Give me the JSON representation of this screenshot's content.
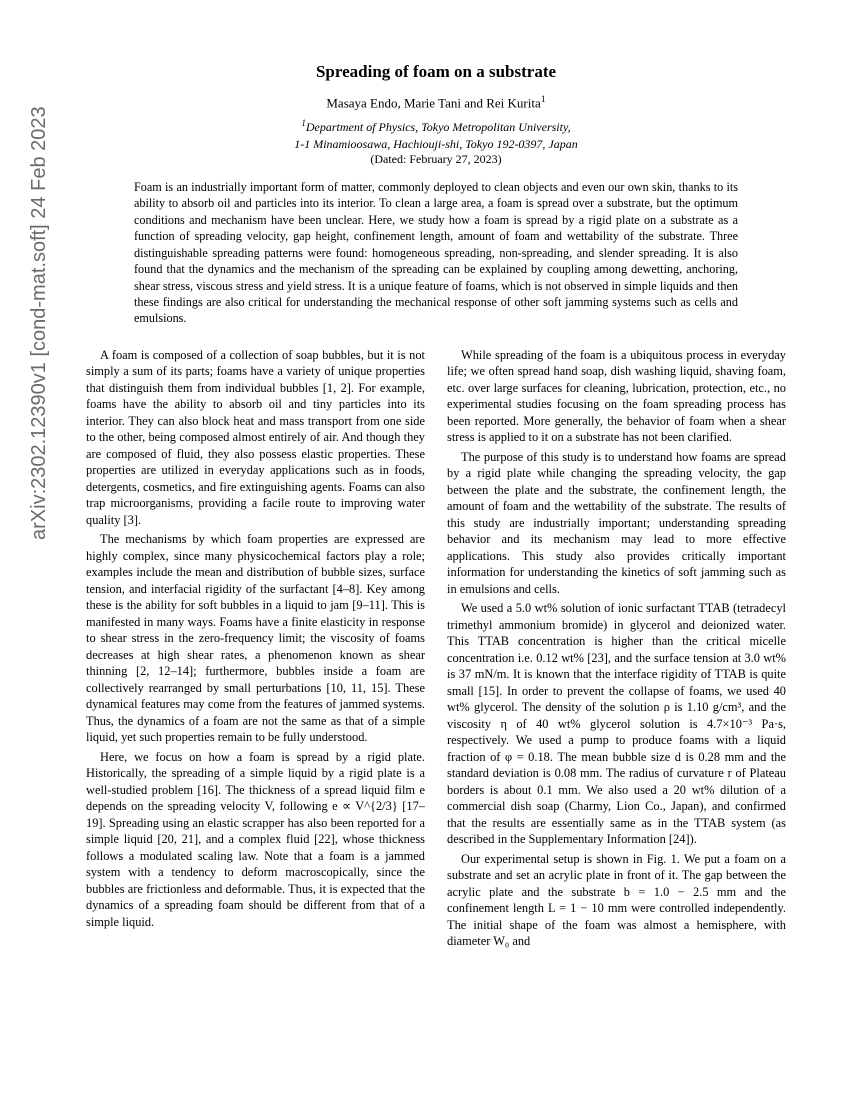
{
  "arxiv_stamp": "arXiv:2302.12390v1  [cond-mat.soft]  24 Feb 2023",
  "title": "Spreading of foam on a substrate",
  "authors": "Masaya Endo, Marie Tani and Rei Kurita",
  "author_sup": "1",
  "affil_label": "1",
  "affil1": "Department of Physics, Tokyo Metropolitan University,",
  "affil2": "1-1 Minamioosawa, Hachiouji-shi, Tokyo 192-0397, Japan",
  "dated": "(Dated: February 27, 2023)",
  "abstract": "Foam is an industrially important form of matter, commonly deployed to clean objects and even our own skin, thanks to its ability to absorb oil and particles into its interior. To clean a large area, a foam is spread over a substrate, but the optimum conditions and mechanism have been unclear. Here, we study how a foam is spread by a rigid plate on a substrate as a function of spreading velocity, gap height, confinement length, amount of foam and wettability of the substrate. Three distinguishable spreading patterns were found: homogeneous spreading, non-spreading, and slender spreading. It is also found that the dynamics and the mechanism of the spreading can be explained by coupling among dewetting, anchoring, shear stress, viscous stress and yield stress. It is a unique feature of foams, which is not observed in simple liquids and then these findings are also critical for understanding the mechanical response of other soft jamming systems such as cells and emulsions.",
  "col1": {
    "p1": "A foam is composed of a collection of soap bubbles, but it is not simply a sum of its parts; foams have a variety of unique properties that distinguish them from individual bubbles [1, 2]. For example, foams have the ability to absorb oil and tiny particles into its interior. They can also block heat and mass transport from one side to the other, being composed almost entirely of air. And though they are composed of fluid, they also possess elastic properties. These properties are utilized in everyday applications such as in foods, detergents, cosmetics, and fire extinguishing agents. Foams can also trap microorganisms, providing a facile route to improving water quality [3].",
    "p2": "The mechanisms by which foam properties are expressed are highly complex, since many physicochemical factors play a role; examples include the mean and distribution of bubble sizes, surface tension, and interfacial rigidity of the surfactant [4–8]. Key among these is the ability for soft bubbles in a liquid to jam [9–11]. This is manifested in many ways. Foams have a finite elasticity in response to shear stress in the zero-frequency limit; the viscosity of foams decreases at high shear rates, a phenomenon known as shear thinning [2, 12–14]; furthermore, bubbles inside a foam are collectively rearranged by small perturbations [10, 11, 15]. These dynamical features may come from the features of jammed systems. Thus, the dynamics of a foam are not the same as that of a simple liquid, yet such properties remain to be fully understood.",
    "p3": "Here, we focus on how a foam is spread by a rigid plate. Historically, the spreading of a simple liquid by a rigid plate is a well-studied problem [16]. The thickness of a spread liquid film e depends on the spreading velocity V, following e ∝ V^{2/3} [17–19]. Spreading using an elastic scrapper has also been reported for a simple liquid [20, 21], and a complex fluid [22], whose thickness follows a modulated scaling law. Note that a foam is a jammed system with a tendency to deform macroscopically, since the bubbles are frictionless and deformable. Thus, it is expected that the dynamics of a spreading foam should be different from that of a simple liquid."
  },
  "col2": {
    "p1": "While spreading of the foam is a ubiquitous process in everyday life; we often spread hand soap, dish washing liquid, shaving foam, etc. over large surfaces for cleaning, lubrication, protection, etc., no experimental studies focusing on the foam spreading process has been reported. More generally, the behavior of foam when a shear stress is applied to it on a substrate has not been clarified.",
    "p2": "The purpose of this study is to understand how foams are spread by a rigid plate while changing the spreading velocity, the gap between the plate and the substrate, the confinement length, the amount of foam and the wettability of the substrate. The results of this study are industrially important; understanding spreading behavior and its mechanism may lead to more effective applications. This study also provides critically important information for understanding the kinetics of soft jamming such as in emulsions and cells.",
    "p3": "We used a 5.0 wt% solution of ionic surfactant TTAB (tetradecyl trimethyl ammonium bromide) in glycerol and deionized water. This TTAB concentration is higher than the critical micelle concentration i.e. 0.12 wt% [23], and the surface tension at 3.0 wt% is 37 mN/m. It is known that the interface rigidity of TTAB is quite small [15]. In order to prevent the collapse of foams, we used 40 wt% glycerol. The density of the solution ρ is 1.10 g/cm³, and the viscosity η of 40 wt% glycerol solution is 4.7×10⁻³ Pa·s, respectively. We used a pump to produce foams with a liquid fraction of φ = 0.18. The mean bubble size d is 0.28 mm and the standard deviation is 0.08 mm. The radius of curvature r of Plateau borders is about 0.1 mm. We also used a 20 wt% dilution of a commercial dish soap (Charmy, Lion Co., Japan), and confirmed that the results are essentially same as in the TTAB system (as described in the Supplementary Information [24]).",
    "p4": "Our experimental setup is shown in Fig. 1. We put a foam on a substrate and set an acrylic plate in front of it. The gap between the acrylic plate and the substrate b = 1.0 − 2.5 mm and the confinement length L = 1 − 10 mm were controlled independently. The initial shape of the foam was almost a hemisphere, with diameter W₀ and"
  }
}
